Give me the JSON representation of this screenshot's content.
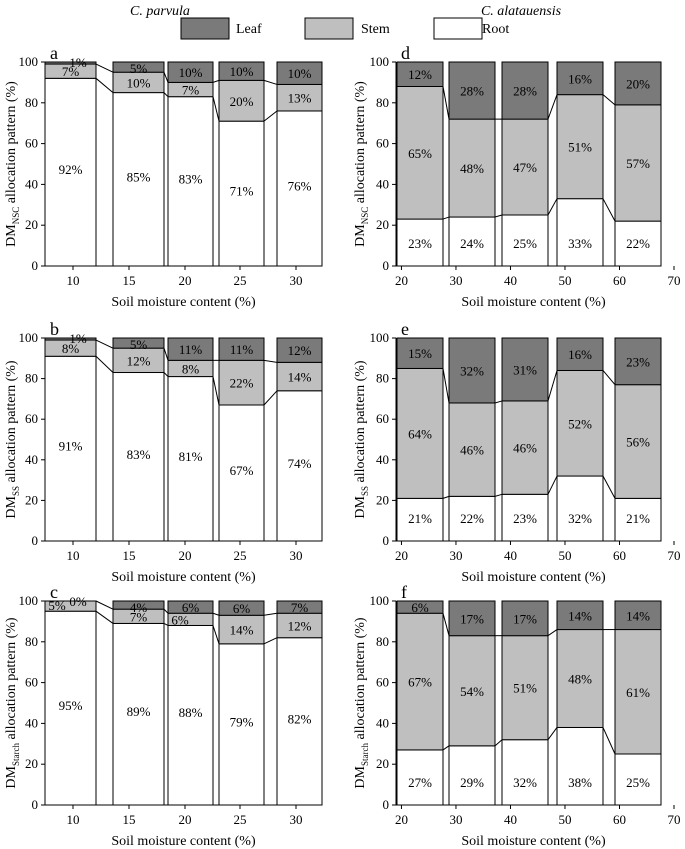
{
  "headers": {
    "left": "C. parvula",
    "right": "C. alatauensis"
  },
  "legend": [
    {
      "label": "Leaf",
      "color": "#7a7a7a"
    },
    {
      "label": "Stem",
      "color": "#bfbfbf"
    },
    {
      "label": "Root",
      "color": "#ffffff"
    }
  ],
  "xlabel": "Soil moisture content (%)",
  "chart_data": [
    {
      "panel": "a",
      "type": "bar",
      "stacked": true,
      "ylabel": "DM",
      "ylabel_sub": "NSC",
      "ylabel_rest": " allocation pattern (%)",
      "categories": [
        "10",
        "15",
        "20",
        "25",
        "30"
      ],
      "xticks": [
        "10",
        "15",
        "20",
        "25",
        "30"
      ],
      "xlim": [
        7.5,
        32.5
      ],
      "ylim": [
        0,
        100
      ],
      "yticks": [
        0,
        20,
        40,
        60,
        80,
        100
      ],
      "series": [
        {
          "name": "Root",
          "values": [
            92,
            85,
            83,
            71,
            76
          ],
          "labels": [
            "92%",
            "85%",
            "83%",
            "71%",
            "76%"
          ]
        },
        {
          "name": "Stem",
          "values": [
            7,
            10,
            7,
            20,
            13
          ],
          "labels": [
            "7%",
            "10%",
            "7%",
            "20%",
            "13%"
          ]
        },
        {
          "name": "Leaf",
          "values": [
            1,
            5,
            10,
            10,
            10
          ],
          "labels": [
            "1%",
            "5%",
            "10%",
            "10%",
            "10%"
          ]
        }
      ]
    },
    {
      "panel": "d",
      "type": "bar",
      "stacked": true,
      "ylabel": "DM",
      "ylabel_sub": "NSC",
      "ylabel_rest": " allocation pattern (%)",
      "categories": [
        "22.5",
        "32.5",
        "42.5",
        "52.5",
        "62.5"
      ],
      "xticks": [
        "20",
        "30",
        "40",
        "50",
        "60",
        "70"
      ],
      "xlim": [
        19,
        70
      ],
      "ylim": [
        0,
        100
      ],
      "yticks": [
        0,
        20,
        40,
        60,
        80,
        100
      ],
      "series": [
        {
          "name": "Root",
          "values": [
            23,
            24,
            25,
            33,
            22
          ],
          "labels": [
            "23%",
            "24%",
            "25%",
            "33%",
            "22%"
          ]
        },
        {
          "name": "Stem",
          "values": [
            65,
            48,
            47,
            51,
            57
          ],
          "labels": [
            "65%",
            "48%",
            "47%",
            "51%",
            "57%"
          ]
        },
        {
          "name": "Leaf",
          "values": [
            12,
            28,
            28,
            16,
            20
          ],
          "labels": [
            "12%",
            "28%",
            "28%",
            "16%",
            "20%"
          ]
        }
      ]
    },
    {
      "panel": "b",
      "type": "bar",
      "stacked": true,
      "ylabel": "DM",
      "ylabel_sub": "SS",
      "ylabel_rest": " allocation pattern (%)",
      "categories": [
        "10",
        "15",
        "20",
        "25",
        "30"
      ],
      "xticks": [
        "10",
        "15",
        "20",
        "25",
        "30"
      ],
      "xlim": [
        7.5,
        32.5
      ],
      "ylim": [
        0,
        100
      ],
      "yticks": [
        0,
        20,
        40,
        60,
        80,
        100
      ],
      "series": [
        {
          "name": "Root",
          "values": [
            91,
            83,
            81,
            67,
            74
          ],
          "labels": [
            "91%",
            "83%",
            "81%",
            "67%",
            "74%"
          ]
        },
        {
          "name": "Stem",
          "values": [
            8,
            12,
            8,
            22,
            14
          ],
          "labels": [
            "8%",
            "12%",
            "8%",
            "22%",
            "14%"
          ]
        },
        {
          "name": "Leaf",
          "values": [
            1,
            5,
            11,
            11,
            12
          ],
          "labels": [
            "1%",
            "5%",
            "11%",
            "11%",
            "12%"
          ]
        }
      ]
    },
    {
      "panel": "e",
      "type": "bar",
      "stacked": true,
      "ylabel": "DM",
      "ylabel_sub": "SS",
      "ylabel_rest": " allocation pattern (%)",
      "categories": [
        "22.5",
        "32.5",
        "42.5",
        "52.5",
        "62.5"
      ],
      "xticks": [
        "20",
        "30",
        "40",
        "50",
        "60",
        "70"
      ],
      "xlim": [
        19,
        70
      ],
      "ylim": [
        0,
        100
      ],
      "yticks": [
        0,
        20,
        40,
        60,
        80,
        100
      ],
      "series": [
        {
          "name": "Root",
          "values": [
            21,
            22,
            23,
            32,
            21
          ],
          "labels": [
            "21%",
            "22%",
            "23%",
            "32%",
            "21%"
          ]
        },
        {
          "name": "Stem",
          "values": [
            64,
            46,
            46,
            52,
            56
          ],
          "labels": [
            "64%",
            "46%",
            "46%",
            "52%",
            "56%"
          ]
        },
        {
          "name": "Leaf",
          "values": [
            15,
            32,
            31,
            16,
            23
          ],
          "labels": [
            "15%",
            "32%",
            "31%",
            "16%",
            "23%"
          ]
        }
      ]
    },
    {
      "panel": "c",
      "type": "bar",
      "stacked": true,
      "ylabel": "DM",
      "ylabel_sub": "Starch",
      "ylabel_rest": " allocation pattern (%)",
      "categories": [
        "10",
        "15",
        "20",
        "25",
        "30"
      ],
      "xticks": [
        "10",
        "15",
        "20",
        "25",
        "30"
      ],
      "xlim": [
        7.5,
        32.5
      ],
      "ylim": [
        0,
        100
      ],
      "yticks": [
        0,
        20,
        40,
        60,
        80,
        100
      ],
      "series": [
        {
          "name": "Root",
          "values": [
            95,
            89,
            88,
            79,
            82
          ],
          "labels": [
            "95%",
            "89%",
            "88%",
            "79%",
            "82%"
          ]
        },
        {
          "name": "Stem",
          "values": [
            5,
            7,
            6,
            14,
            12
          ],
          "labels": [
            "5%",
            "7%",
            "6%",
            "14%",
            "12%"
          ]
        },
        {
          "name": "Leaf",
          "values": [
            0,
            4,
            6,
            6,
            7
          ],
          "labels": [
            "0%",
            "4%",
            "6%",
            "6%",
            "7%"
          ]
        }
      ]
    },
    {
      "panel": "f",
      "type": "bar",
      "stacked": true,
      "ylabel": "DM",
      "ylabel_sub": "Starch",
      "ylabel_rest": " allocation pattern (%)",
      "categories": [
        "22.5",
        "32.5",
        "42.5",
        "52.5",
        "62.5"
      ],
      "xticks": [
        "20",
        "30",
        "40",
        "50",
        "60",
        "70"
      ],
      "xlim": [
        19,
        70
      ],
      "ylim": [
        0,
        100
      ],
      "yticks": [
        0,
        20,
        40,
        60,
        80,
        100
      ],
      "series": [
        {
          "name": "Root",
          "values": [
            27,
            29,
            32,
            38,
            25
          ],
          "labels": [
            "27%",
            "29%",
            "32%",
            "38%",
            "25%"
          ]
        },
        {
          "name": "Stem",
          "values": [
            67,
            54,
            51,
            48,
            61
          ],
          "labels": [
            "67%",
            "54%",
            "51%",
            "48%",
            "61%"
          ]
        },
        {
          "name": "Leaf",
          "values": [
            6,
            17,
            17,
            14,
            14
          ],
          "labels": [
            "6%",
            "17%",
            "17%",
            "14%",
            "14%"
          ]
        }
      ]
    }
  ]
}
